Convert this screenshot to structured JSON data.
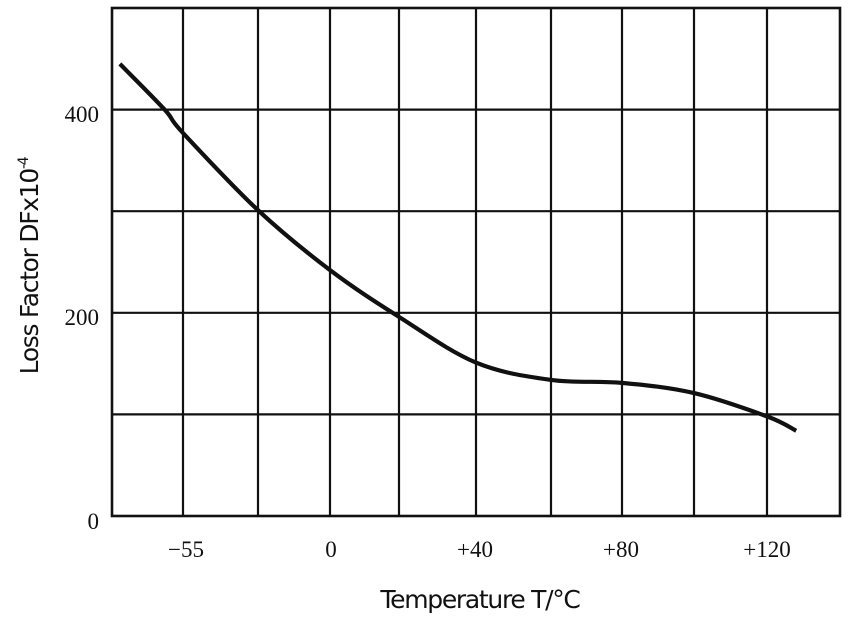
{
  "chart_data": {
    "type": "line",
    "title": "",
    "xlabel": "Temperature T/°C",
    "ylabel": "Loss Factor DFx10",
    "ylabel_superscript": "-4",
    "x_tick_labels": [
      "−55",
      "0",
      "+40",
      "+80",
      "+120"
    ],
    "y_tick_labels": [
      "0",
      "200",
      "400"
    ],
    "x_gridlines_celsius": [
      -82,
      -55,
      -27.5,
      0,
      20,
      40,
      60,
      80,
      100,
      120,
      140
    ],
    "y_gridlines": [
      0,
      100,
      200,
      300,
      400,
      500
    ],
    "xlim": [
      -82,
      140
    ],
    "ylim": [
      0,
      500
    ],
    "grid": true,
    "legend": null,
    "series": [
      {
        "name": "Loss Factor",
        "color": "#111111",
        "x": [
          -79,
          -62,
          -55,
          -27.5,
          0,
          20,
          40,
          60,
          80,
          100,
          120,
          128
        ],
        "y": [
          445,
          400,
          377,
          301,
          242,
          196,
          151,
          134,
          131,
          121,
          98,
          84
        ]
      }
    ]
  },
  "labels": {
    "x_axis_title": "Temperature T/°C",
    "y_axis_title_main": "Loss Factor DFx10",
    "y_axis_title_sup": "-4",
    "x_ticks": {
      "t0": "−55",
      "t1": "0",
      "t2": "+40",
      "t3": "+80",
      "t4": "+120"
    },
    "y_ticks": {
      "t0": "0",
      "t1": "200",
      "t2": "400"
    }
  },
  "colors": {
    "grid": "#111111",
    "curve": "#111111",
    "background": "#ffffff"
  }
}
